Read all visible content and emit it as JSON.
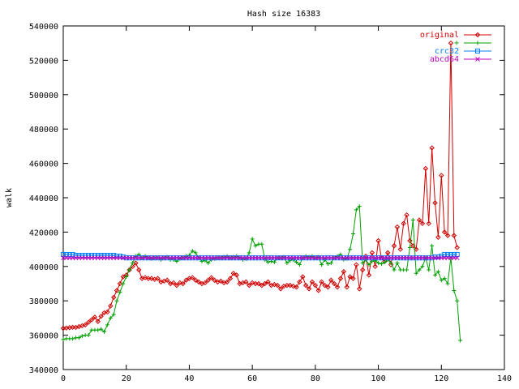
{
  "chart_data": {
    "type": "line",
    "title": "Hash size 16383",
    "xlabel": "",
    "ylabel": "walk",
    "xlim": [
      0,
      140
    ],
    "ylim": [
      340000,
      540000
    ],
    "xticks": [
      0,
      20,
      40,
      60,
      80,
      100,
      120,
      140
    ],
    "yticks": [
      340000,
      360000,
      380000,
      400000,
      420000,
      440000,
      460000,
      480000,
      500000,
      520000,
      540000
    ],
    "grid": false,
    "legend_position": "top-right",
    "series": [
      {
        "name": "original",
        "color": "#d00000",
        "marker": "diamond",
        "values": [
          364000,
          364200,
          364400,
          364600,
          364500,
          365000,
          365500,
          366000,
          367500,
          369000,
          370500,
          368000,
          371000,
          373000,
          373500,
          377000,
          382000,
          386000,
          390000,
          394000,
          395000,
          398000,
          400000,
          402000,
          398000,
          393000,
          393500,
          393000,
          393000,
          392500,
          393000,
          391000,
          391500,
          392000,
          390000,
          390500,
          389000,
          390500,
          390000,
          392000,
          393000,
          393500,
          392000,
          391000,
          390000,
          390500,
          392000,
          393500,
          392000,
          391000,
          391500,
          390500,
          391000,
          393000,
          396000,
          395000,
          390000,
          390500,
          391000,
          389000,
          390500,
          390000,
          390000,
          389000,
          390000,
          391000,
          389000,
          389500,
          389000,
          387000,
          388500,
          389000,
          389000,
          388500,
          388000,
          391000,
          394000,
          389000,
          387000,
          391000,
          389000,
          386000,
          391000,
          389000,
          388000,
          392000,
          390000,
          388000,
          393000,
          397000,
          388000,
          394000,
          393000,
          401000,
          387000,
          398000,
          406000,
          395000,
          408000,
          400000,
          415000,
          405000,
          403000,
          408000,
          401000,
          412000,
          423000,
          410000,
          425000,
          430000,
          415000,
          412000,
          410000,
          427000,
          425000,
          457000,
          425000,
          469000,
          437000,
          417000,
          453000,
          420000,
          418000,
          530000,
          418000,
          411000
        ]
      },
      {
        "name": "+",
        "color": "#00a000",
        "marker": "plus",
        "values": [
          357500,
          358000,
          358000,
          358000,
          358500,
          358500,
          359500,
          360000,
          360000,
          363000,
          363000,
          363000,
          363500,
          362000,
          366000,
          370000,
          372000,
          380000,
          385000,
          390000,
          394000,
          398000,
          402000,
          406000,
          407000,
          405000,
          406000,
          405000,
          404500,
          405000,
          405000,
          404000,
          405000,
          405500,
          404000,
          404000,
          403000,
          404500,
          405000,
          406000,
          406500,
          409000,
          408000,
          405000,
          403000,
          403500,
          402000,
          404000,
          404500,
          405000,
          405000,
          405500,
          406000,
          405000,
          405500,
          406000,
          405000,
          404000,
          404500,
          408000,
          416000,
          412000,
          413000,
          413000,
          404000,
          402500,
          403000,
          402500,
          405000,
          405000,
          405500,
          402000,
          403500,
          404000,
          402500,
          401000,
          405000,
          406000,
          405500,
          406000,
          405000,
          405500,
          401000,
          404000,
          401500,
          402000,
          405000,
          406000,
          407000,
          404000,
          404500,
          410000,
          419000,
          433000,
          435000,
          402000,
          404000,
          401000,
          403000,
          403500,
          402000,
          401500,
          402500,
          404000,
          402000,
          398000,
          402000,
          398000,
          398000,
          398000,
          411000,
          427000,
          396000,
          398000,
          400000,
          405000,
          398000,
          412000,
          395000,
          397000,
          392000,
          393000,
          390000,
          405000,
          386000,
          380000,
          357000
        ]
      },
      {
        "name": "crc32",
        "color": "#0080ff",
        "marker": "square",
        "values": [
          407000,
          407000,
          407000,
          407000,
          406500,
          406500,
          406500,
          406500,
          406500,
          406500,
          406500,
          406500,
          406500,
          406500,
          406500,
          406500,
          406500,
          406000,
          406000,
          405500,
          405000,
          405000,
          405000,
          405000,
          405000,
          405000,
          405000,
          405000,
          405000,
          405000,
          405000,
          405000,
          405000,
          405000,
          405000,
          405000,
          405000,
          405000,
          405000,
          405000,
          405000,
          405000,
          405000,
          405000,
          405000,
          405000,
          405000,
          405000,
          405000,
          405000,
          405000,
          405000,
          405000,
          405000,
          405000,
          405000,
          405000,
          405000,
          405000,
          405000,
          405000,
          405000,
          405000,
          405000,
          405000,
          405000,
          405000,
          405000,
          405000,
          405000,
          405000,
          405000,
          405000,
          405000,
          405000,
          405000,
          405000,
          405000,
          405000,
          405000,
          405000,
          405000,
          405000,
          405000,
          405000,
          405000,
          405000,
          405000,
          405000,
          405000,
          405000,
          405000,
          405000,
          405000,
          405000,
          405000,
          405000,
          405000,
          405000,
          405000,
          405000,
          405000,
          405000,
          405000,
          405000,
          405000,
          405000,
          405000,
          405000,
          405000,
          405000,
          405000,
          405000,
          405000,
          405000,
          405000,
          405000,
          405000,
          405500,
          405500,
          406000,
          407000,
          407000,
          407000,
          407000,
          407000
        ]
      },
      {
        "name": "abcd64",
        "color": "#c000c0",
        "marker": "cross",
        "values": [
          405000,
          405000,
          405000,
          405000,
          405000,
          405000,
          405000,
          405000,
          405000,
          405000,
          405000,
          405000,
          405000,
          405000,
          405000,
          405000,
          405000,
          405000,
          405000,
          405000,
          405000,
          405000,
          405000,
          405000,
          405000,
          405000,
          405000,
          405000,
          405000,
          405000,
          405000,
          405000,
          405000,
          405000,
          405000,
          405000,
          405000,
          405000,
          405000,
          405000,
          405000,
          405000,
          405000,
          405000,
          405000,
          405000,
          405000,
          405000,
          405000,
          405000,
          405000,
          405000,
          405000,
          405000,
          405000,
          405000,
          405000,
          405000,
          405000,
          405000,
          405000,
          405000,
          405000,
          405000,
          405000,
          405000,
          405000,
          405000,
          405000,
          405000,
          405000,
          405000,
          405000,
          405000,
          405000,
          405000,
          405000,
          405000,
          405000,
          405000,
          405000,
          405000,
          405000,
          405000,
          405000,
          405000,
          405000,
          405000,
          405000,
          405000,
          405000,
          405000,
          405000,
          405000,
          405000,
          405000,
          405000,
          405000,
          405000,
          405000,
          405000,
          405000,
          405000,
          405000,
          405000,
          405000,
          405000,
          405000,
          405000,
          405000,
          405000,
          405000,
          405000,
          405000,
          405000,
          405000,
          405000,
          405000,
          405000,
          405000,
          405000,
          405000,
          405000,
          405000,
          405000,
          405000
        ]
      }
    ]
  }
}
